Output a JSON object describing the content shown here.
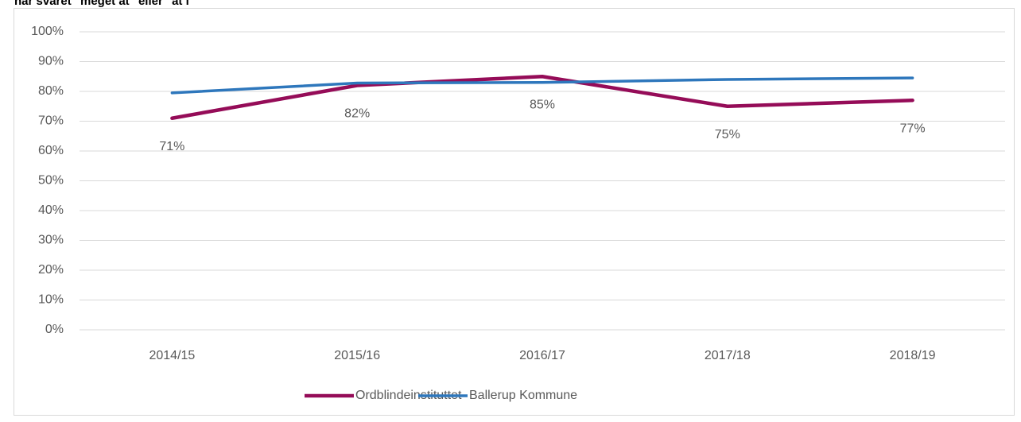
{
  "chart_data": {
    "type": "line",
    "title": "har svaret \"meget at\" eller \"at i\"",
    "categories": [
      "2014/15",
      "2015/16",
      "2016/17",
      "2017/18",
      "2018/19"
    ],
    "series": [
      {
        "name": "Ordblindeinstituttet",
        "color": "#950c58",
        "values": [
          71,
          82,
          85,
          75,
          77
        ],
        "value_labels": [
          "71%",
          "82%",
          "85%",
          "75%",
          "77%"
        ]
      },
      {
        "name": "Ballerup Kommune",
        "color": "#2e77bc",
        "values": [
          79.5,
          82.8,
          83,
          84,
          84.5
        ]
      }
    ],
    "ylim": [
      0,
      100
    ],
    "yticks": [
      {
        "value": 0,
        "label": "0%"
      },
      {
        "value": 10,
        "label": "10%"
      },
      {
        "value": 20,
        "label": "20%"
      },
      {
        "value": 30,
        "label": "30%"
      },
      {
        "value": 40,
        "label": "40%"
      },
      {
        "value": 50,
        "label": "50%"
      },
      {
        "value": 60,
        "label": "60%"
      },
      {
        "value": 70,
        "label": "70%"
      },
      {
        "value": 80,
        "label": "80%"
      },
      {
        "value": 90,
        "label": "90%"
      },
      {
        "value": 100,
        "label": "100%"
      }
    ],
    "grid": true
  }
}
